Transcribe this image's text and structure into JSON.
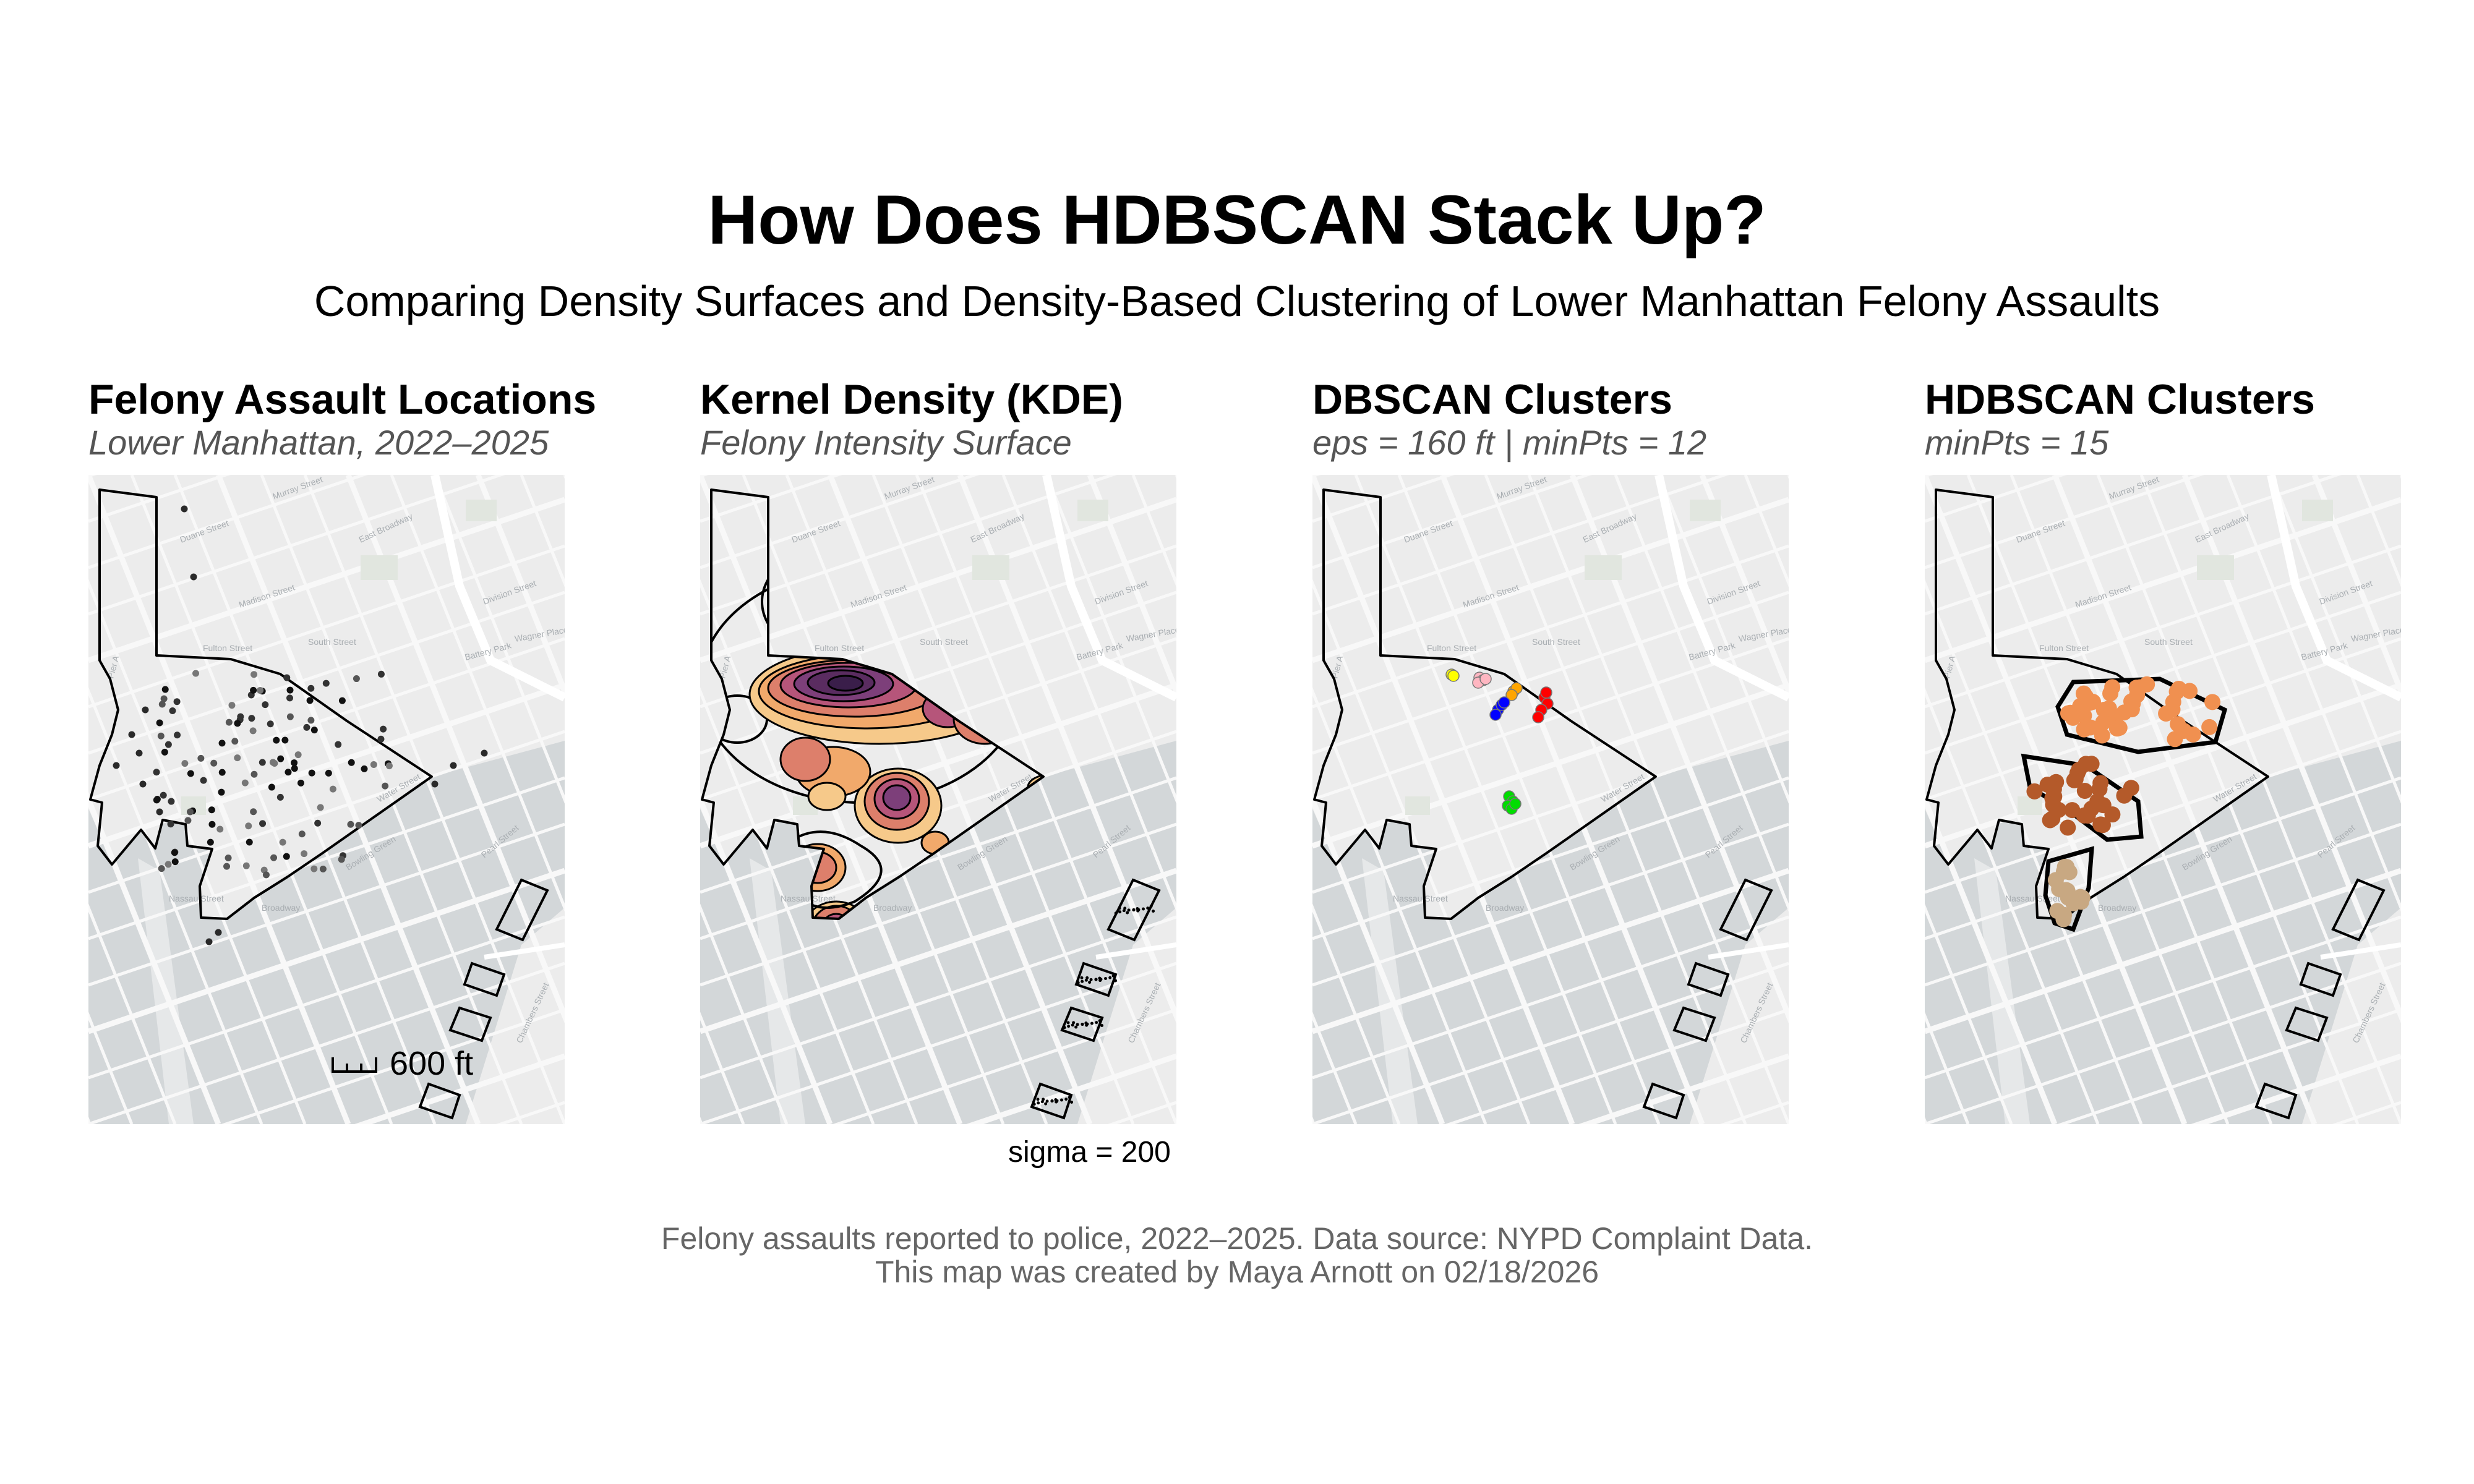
{
  "figure": {
    "title": "How Does HDBSCAN Stack Up?",
    "subtitle": "Comparing Density Surfaces and Density-Based Clustering of Lower Manhattan Felony Assaults",
    "caption_line1": "Felony assaults reported to police, 2022–2025. Data source: NYPD Complaint Data.",
    "caption_line2": "This map was created by Maya Arnott on 02/18/2026"
  },
  "panels": [
    {
      "title": "Felony Assault Locations",
      "subtitle": "Lower Manhattan, 2022–2025",
      "scale_label": "600 ft"
    },
    {
      "title": "Kernel Density (KDE)",
      "subtitle": "Felony Intensity Surface",
      "note": "sigma = 200"
    },
    {
      "title": "DBSCAN Clusters",
      "subtitle": "eps = 160 ft | minPts = 12"
    },
    {
      "title": "HDBSCAN Clusters",
      "subtitle": "minPts = 15"
    }
  ],
  "basemap": {
    "street_labels": [
      "Murray Street",
      "Duane Street",
      "Madison Street",
      "East Broadway",
      "Division Street",
      "Wagner Place",
      "Battery Park",
      "Pier A",
      "Fulton Street",
      "South Street",
      "Water Street",
      "Bowling Green",
      "Nassau Street",
      "Broadway",
      "Pearl Street",
      "Chambers Street"
    ],
    "colors": {
      "land": "#ececec",
      "water": "#d3d7d9",
      "street": "#f8f8f8",
      "park": "#e1e6df",
      "boundary": "#000000"
    }
  },
  "colors": {
    "kde_ramp": [
      "#f6c98a",
      "#f1a96b",
      "#dd7f6b",
      "#b6557a",
      "#7d3f7a",
      "#3a1e4a"
    ],
    "dbscan": [
      "#ffff00",
      "#ffb6c1",
      "#ffa500",
      "#0000ff",
      "#ff0000",
      "#00dd00"
    ],
    "hdbscan": [
      "#f09050",
      "#b45a2a",
      "#c8a882"
    ]
  }
}
